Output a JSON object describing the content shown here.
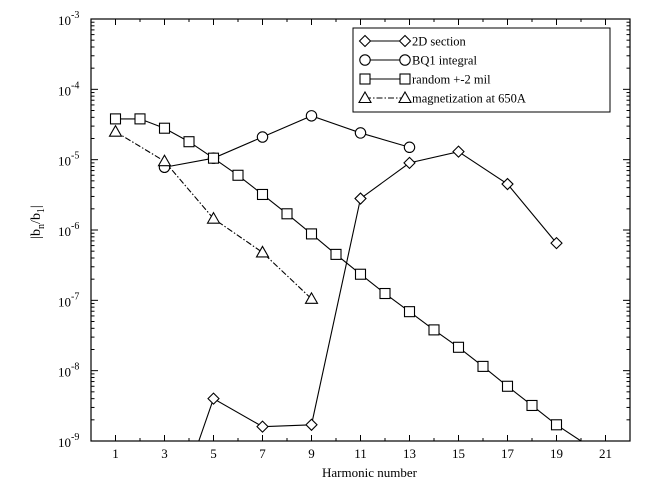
{
  "chart_data": {
    "type": "line",
    "xlabel": "Harmonic number",
    "ylabel": "|b",
    "ylabel_sub_n": "n",
    "ylabel_mid": "/b",
    "ylabel_sub_1": "1",
    "ylabel_end": "|",
    "xlim": [
      0,
      22
    ],
    "xticks": [
      1,
      3,
      5,
      7,
      9,
      11,
      13,
      15,
      17,
      19,
      21
    ],
    "ylim_log10": [
      -9,
      -3
    ],
    "y_scale": "log",
    "yticks": [
      {
        "base": "10",
        "exp": "-3"
      },
      {
        "base": "10",
        "exp": "-4"
      },
      {
        "base": "10",
        "exp": "-5"
      },
      {
        "base": "10",
        "exp": "-6"
      },
      {
        "base": "10",
        "exp": "-7"
      },
      {
        "base": "10",
        "exp": "-8"
      },
      {
        "base": "10",
        "exp": "-9"
      }
    ],
    "legend_position": "top-right",
    "series": [
      {
        "name": "2D section",
        "marker": "diamond",
        "line": "solid",
        "x": [
          4.4,
          5,
          7,
          9,
          11,
          13,
          15,
          17,
          19
        ],
        "y": [
          1e-09,
          4e-09,
          1.6e-09,
          1.7e-09,
          2.8e-06,
          9e-06,
          1.3e-05,
          4.5e-06,
          6.5e-07
        ],
        "marker_mask": [
          false,
          true,
          true,
          true,
          true,
          true,
          true,
          true,
          true
        ]
      },
      {
        "name": "BQ1 integral",
        "marker": "circle",
        "line": "solid",
        "x": [
          3,
          5,
          7,
          9,
          11,
          13
        ],
        "y": [
          7.8e-06,
          1.05e-05,
          2.1e-05,
          4.2e-05,
          2.4e-05,
          1.5e-05
        ]
      },
      {
        "name": "random +-2 mil",
        "marker": "square",
        "line": "solid",
        "x": [
          1,
          2,
          3,
          4,
          5,
          6,
          7,
          8,
          9,
          10,
          11,
          12,
          13,
          14,
          15,
          16,
          17,
          18,
          19,
          20
        ],
        "y": [
          3.8e-05,
          3.8e-05,
          2.8e-05,
          1.8e-05,
          1.05e-05,
          6e-06,
          3.2e-06,
          1.7e-06,
          8.8e-07,
          4.5e-07,
          2.35e-07,
          1.25e-07,
          6.9e-08,
          3.8e-08,
          2.15e-08,
          1.15e-08,
          6e-09,
          3.2e-09,
          1.7e-09,
          1e-09
        ],
        "marker_mask": [
          true,
          true,
          true,
          true,
          true,
          true,
          true,
          true,
          true,
          true,
          true,
          true,
          true,
          true,
          true,
          true,
          true,
          true,
          true,
          false
        ]
      },
      {
        "name": "magnetization at  650A",
        "marker": "triangle",
        "line": "dashdot",
        "x": [
          1,
          3,
          5,
          7,
          9
        ],
        "y": [
          2.5e-05,
          9.5e-06,
          1.45e-06,
          4.8e-07,
          1.05e-07
        ]
      }
    ]
  }
}
